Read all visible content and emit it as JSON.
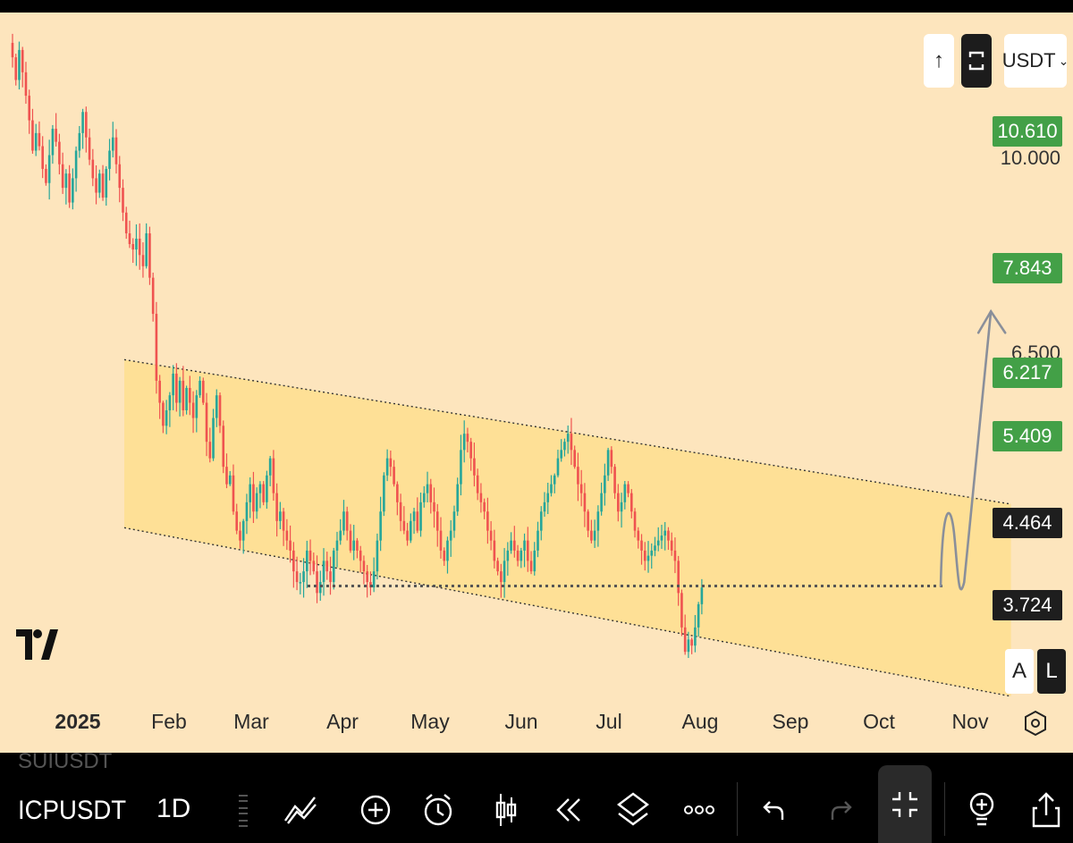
{
  "toolbar": {
    "up_label": "↑",
    "currency": "USDT",
    "currency_caret": "⌄"
  },
  "price_scale": {
    "ticks": [
      "10.000",
      "6.500"
    ],
    "badges": [
      {
        "value": "10.610",
        "color": "#43a047"
      },
      {
        "value": "7.843",
        "color": "#43a047"
      },
      {
        "value": "6.217",
        "color": "#43a047"
      },
      {
        "value": "5.409",
        "color": "#43a047"
      },
      {
        "value": "4.464",
        "color": "#1e1e1e"
      },
      {
        "value": "3.724",
        "color": "#1e1e1e"
      }
    ]
  },
  "scale_buttons": {
    "auto": "A",
    "log": "L"
  },
  "logo_text": "TV",
  "bottom": {
    "symbol_above": "SUIUSDT",
    "symbol": "ICPUSDT",
    "interval": "1D"
  },
  "colors": {
    "background": "#fde5bd",
    "channel": "#fddd8a",
    "up": "#26a69a",
    "down": "#ef5350",
    "badge_green": "#43a047"
  },
  "chart_data": {
    "type": "candlestick",
    "symbol": "ICPUSDT",
    "interval": "1D",
    "x_tick_labels": [
      "2025",
      "Feb",
      "Mar",
      "Apr",
      "May",
      "Jun",
      "Jul",
      "Aug",
      "Sep",
      "Oct",
      "Nov"
    ],
    "x_range": [
      "2024-12-27",
      "2025-11-10"
    ],
    "y_range": [
      3.4,
      14.0
    ],
    "y_scale": "log",
    "price_ticks": [
      10.0,
      6.5
    ],
    "price_badges": [
      10.61,
      7.843,
      6.217,
      5.409,
      4.464,
      3.724
    ],
    "closes": [
      13.2,
      12.6,
      13.4,
      12.8,
      12.2,
      11.6,
      10.9,
      11.3,
      11.0,
      10.5,
      10.2,
      10.8,
      11.4,
      11.1,
      10.6,
      10.1,
      10.4,
      9.8,
      10.3,
      10.9,
      11.3,
      11.8,
      11.2,
      10.7,
      10.3,
      10.0,
      10.4,
      9.9,
      10.5,
      10.9,
      11.2,
      10.6,
      10.1,
      9.6,
      9.2,
      9.0,
      8.9,
      9.1,
      8.8,
      8.6,
      9.2,
      8.4,
      7.8,
      6.8,
      6.5,
      6.2,
      6.4,
      6.6,
      6.9,
      6.5,
      6.8,
      6.4,
      6.7,
      6.5,
      6.3,
      6.6,
      6.8,
      6.5,
      6.0,
      5.8,
      6.3,
      6.6,
      6.2,
      5.7,
      5.5,
      5.6,
      5.2,
      5.0,
      4.9,
      5.1,
      5.3,
      5.5,
      5.2,
      5.4,
      5.5,
      5.3,
      5.6,
      5.8,
      5.4,
      5.1,
      5.2,
      5.0,
      4.9,
      4.8,
      4.6,
      4.5,
      4.5,
      4.6,
      4.8,
      4.7,
      4.6,
      4.4,
      4.5,
      4.7,
      4.6,
      4.5,
      4.8,
      4.9,
      5.0,
      5.2,
      5.0,
      4.8,
      4.9,
      4.8,
      4.7,
      4.6,
      4.5,
      4.45,
      4.6,
      4.9,
      5.2,
      5.6,
      5.8,
      5.7,
      5.5,
      5.3,
      5.1,
      5.0,
      4.9,
      5.1,
      5.2,
      5.0,
      5.3,
      5.4,
      5.5,
      5.3,
      5.2,
      5.0,
      4.8,
      4.7,
      4.9,
      5.0,
      5.2,
      5.5,
      5.9,
      6.1,
      6.0,
      5.8,
      5.6,
      5.4,
      5.3,
      5.2,
      5.0,
      4.9,
      4.7,
      4.6,
      4.5,
      4.7,
      4.8,
      4.9,
      4.8,
      4.7,
      4.8,
      4.9,
      4.7,
      4.6,
      4.8,
      5.0,
      5.2,
      5.3,
      5.4,
      5.5,
      5.6,
      5.8,
      5.9,
      6.0,
      6.1,
      5.9,
      5.7,
      5.5,
      5.4,
      5.2,
      5.0,
      4.9,
      5.0,
      5.2,
      5.4,
      5.6,
      5.9,
      5.7,
      5.4,
      5.2,
      5.3,
      5.5,
      5.4,
      5.2,
      5.0,
      4.9,
      4.8,
      4.7,
      4.75,
      4.8,
      4.85,
      4.9,
      4.95,
      5.0,
      4.9,
      4.8,
      4.7,
      4.4,
      4.1,
      3.9,
      4.0,
      3.95,
      4.1,
      4.3,
      4.45
    ],
    "channel": {
      "upper": [
        [
          "2025-01-31",
          7.1
        ],
        [
          "2025-10-23",
          5.28
        ]
      ],
      "lower": [
        [
          "2025-01-31",
          5.03
        ],
        [
          "2025-10-23",
          3.56
        ]
      ]
    },
    "support_level": 4.464,
    "forecast_arrow": [
      [
        "2025-10-02",
        4.464
      ],
      [
        "2025-10-05",
        4.95
      ],
      [
        "2025-10-09",
        4.464
      ],
      [
        "2025-10-17",
        7.84
      ]
    ],
    "title": "",
    "xlabel": "",
    "ylabel": "",
    "grid": false
  }
}
